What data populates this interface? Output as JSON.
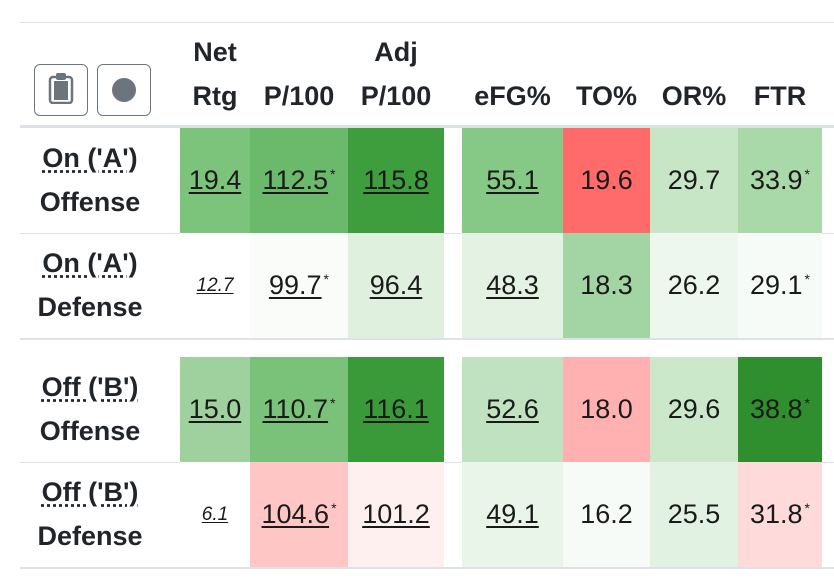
{
  "toolbar": {
    "copy_icon": "clipboard-icon",
    "color_icon": "circle-icon"
  },
  "headers": {
    "net_rtg_line1": "Net",
    "net_rtg_line2": "Rtg",
    "p100": "P/100",
    "adj_line1": "Adj",
    "adj_line2": "P/100",
    "efg": "eFG%",
    "to": "TO%",
    "or": "OR%",
    "ftr": "FTR"
  },
  "rows": [
    {
      "label1": "On ('A')",
      "label2": "Offense",
      "net": {
        "v": "19.4",
        "bg": "#7cc47c"
      },
      "p100": {
        "v": "112.5",
        "ast": "*",
        "bg": "#6bb96b"
      },
      "adj": {
        "v": "115.8",
        "bg": "#3e9e3e"
      },
      "efg": {
        "v": "55.1",
        "bg": "#86c886"
      },
      "to": {
        "v": "19.6",
        "bg": "#ff6b6b"
      },
      "or": {
        "v": "29.7",
        "bg": "#c6e6c6"
      },
      "ftr": {
        "v": "33.9",
        "ast": "*",
        "bg": "#a9d8a9"
      }
    },
    {
      "label1": "On ('A')",
      "label2": "Defense",
      "net": {
        "v": "12.7",
        "bg": "#ffffff"
      },
      "p100": {
        "v": "99.7",
        "ast": "*",
        "bg": "#fafcfa"
      },
      "adj": {
        "v": "96.4",
        "bg": "#dff0df"
      },
      "efg": {
        "v": "48.3",
        "bg": "#e3f2e3"
      },
      "to": {
        "v": "18.3",
        "bg": "#a3d4a3"
      },
      "or": {
        "v": "26.2",
        "bg": "#eef7ee"
      },
      "ftr": {
        "v": "29.1",
        "ast": "*",
        "bg": "#f7fbf7"
      }
    },
    {
      "label1": "Off ('B')",
      "label2": "Offense",
      "net": {
        "v": "15.0",
        "bg": "#9ed19e"
      },
      "p100": {
        "v": "110.7",
        "ast": "*",
        "bg": "#7ac17a"
      },
      "adj": {
        "v": "116.1",
        "bg": "#3a9a3a"
      },
      "efg": {
        "v": "52.6",
        "bg": "#c0e2c0"
      },
      "to": {
        "v": "18.0",
        "bg": "#ffb1b1"
      },
      "or": {
        "v": "29.6",
        "bg": "#cbe8cb"
      },
      "ftr": {
        "v": "38.8",
        "ast": "*",
        "bg": "#2f8f2f"
      }
    },
    {
      "label1": "Off ('B')",
      "label2": "Defense",
      "net": {
        "v": "6.1",
        "bg": "#ffffff"
      },
      "p100": {
        "v": "104.6",
        "ast": "*",
        "bg": "#ffc6c6"
      },
      "adj": {
        "v": "101.2",
        "bg": "#fff0f0"
      },
      "efg": {
        "v": "49.1",
        "bg": "#e8f5e8"
      },
      "to": {
        "v": "16.2",
        "bg": "#f7fbf7"
      },
      "or": {
        "v": "25.5",
        "bg": "#e2f2e2"
      },
      "ftr": {
        "v": "31.8",
        "ast": "*",
        "bg": "#ffdada"
      }
    }
  ]
}
